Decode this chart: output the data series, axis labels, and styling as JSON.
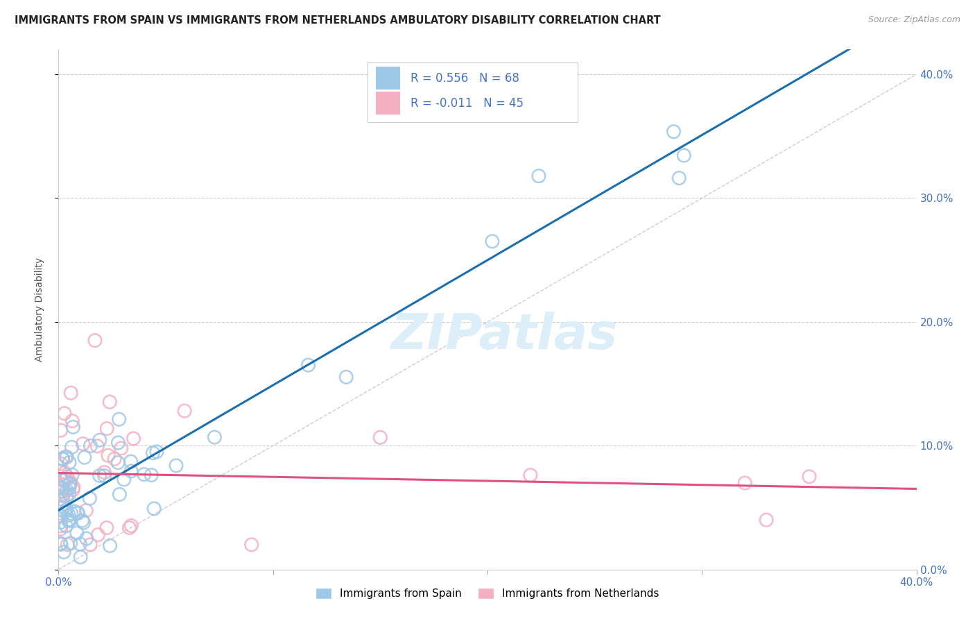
{
  "title": "IMMIGRANTS FROM SPAIN VS IMMIGRANTS FROM NETHERLANDS AMBULATORY DISABILITY CORRELATION CHART",
  "source": "Source: ZipAtlas.com",
  "ylabel": "Ambulatory Disability",
  "legend_1_label": "Immigrants from Spain",
  "legend_2_label": "Immigrants from Netherlands",
  "r1": "0.556",
  "n1": "68",
  "r2": "-0.011",
  "n2": "45",
  "color_spain": "#9ec8e8",
  "color_netherlands": "#f4afc0",
  "color_trendline_spain": "#1a6faf",
  "color_trendline_netherlands": "#e05080",
  "color_refline": "#c8c8c8",
  "xmin": 0.0,
  "xmax": 0.4,
  "ymin": 0.0,
  "ymax": 0.42,
  "background_color": "#ffffff",
  "watermark": "ZIPatlas",
  "watermark_color": "#dceef8"
}
